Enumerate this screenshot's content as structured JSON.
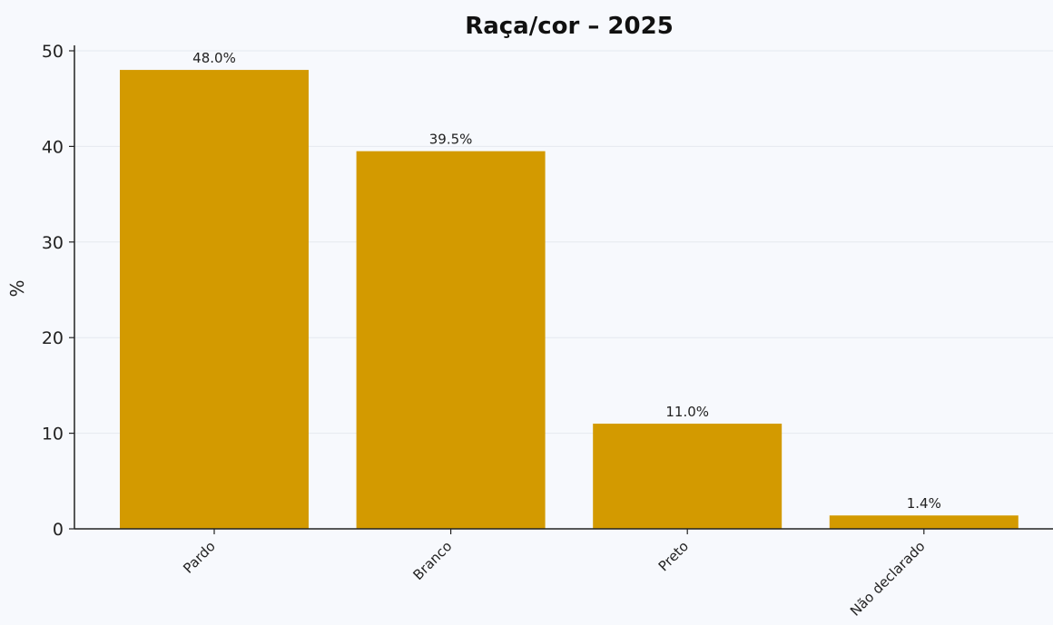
{
  "chart_data": {
    "type": "bar",
    "title": "Raça/cor – 2025",
    "xlabel": "",
    "ylabel": "%",
    "categories": [
      "Pardo",
      "Branco",
      "Preto",
      "Não declarado"
    ],
    "values": [
      48.0,
      39.5,
      11.0,
      1.4
    ],
    "data_labels": [
      "48.0%",
      "39.5%",
      "11.0%",
      "1.4%"
    ],
    "ylim": [
      0,
      50
    ],
    "yticks": [
      0,
      10,
      20,
      30,
      40,
      50
    ],
    "grid": true,
    "bar_color": "#d39a00"
  }
}
